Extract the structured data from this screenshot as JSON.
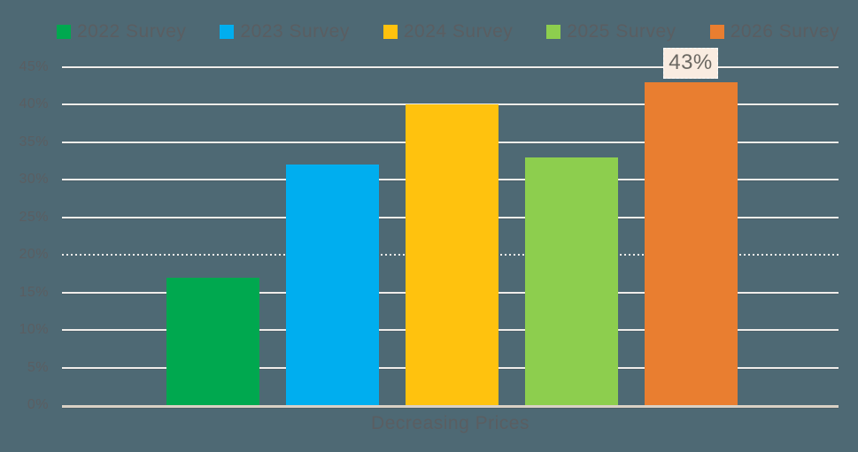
{
  "chart_data": {
    "type": "bar",
    "categories": [
      "Decreasing Prices"
    ],
    "series": [
      {
        "name": "2022 Survey",
        "value": 17,
        "color": "#00a84f"
      },
      {
        "name": "2023 Survey",
        "value": 32,
        "color": "#00aeef"
      },
      {
        "name": "2024 Survey",
        "value": 40,
        "color": "#ffc20e"
      },
      {
        "name": "2025 Survey",
        "value": 33,
        "color": "#8dce4e"
      },
      {
        "name": "2026 Survey",
        "value": 43,
        "color": "#e97e30"
      }
    ],
    "title": "",
    "xlabel": "Decreasing Prices",
    "ylabel": "",
    "ylim": [
      0,
      45
    ],
    "ytick_step": 5,
    "ytick_labels": [
      "0%",
      "5%",
      "10%",
      "15%",
      "20%",
      "25%",
      "30%",
      "35%",
      "40%",
      "45%"
    ],
    "grid": true,
    "dashed_gridline_at_value": 20,
    "legend_position": "top",
    "data_label": {
      "series": "2026 Survey",
      "text": "43%"
    }
  },
  "colors": {
    "background": "#4e6974",
    "gridline": "#efedea",
    "axis_line": "#d9d1c5",
    "text": "#5a5e62",
    "label_box_background": "#f9ece1",
    "label_box_text": "#6b6862"
  }
}
